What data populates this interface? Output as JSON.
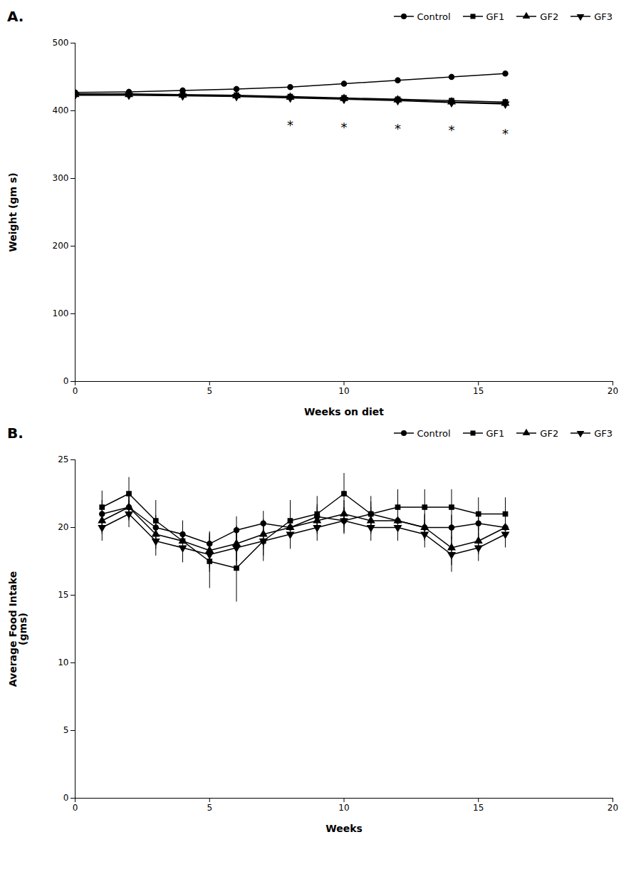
{
  "chart_data": [
    {
      "type": "line",
      "title": "A.",
      "x_label": "Weeks on diet",
      "y_label": "Weight (gm s)",
      "xlim": [
        0,
        20
      ],
      "ylim": [
        0,
        500
      ],
      "xticks": [
        0,
        5,
        10,
        15,
        20
      ],
      "yticks": [
        0,
        100,
        200,
        300,
        400,
        500
      ],
      "grid": false,
      "legend": "upper right",
      "x": [
        0,
        2,
        4,
        6,
        8,
        10,
        12,
        14,
        16
      ],
      "series": [
        {
          "name": "Control",
          "color": "#000000",
          "marker": "circle",
          "values": [
            427,
            428,
            430,
            432,
            435,
            440,
            445,
            450,
            455
          ],
          "yerr": [
            4,
            4,
            4,
            4,
            4,
            4,
            4,
            4,
            4
          ]
        },
        {
          "name": "GF1",
          "color": "#000000",
          "marker": "square",
          "values": [
            425,
            425,
            424,
            423,
            421,
            419,
            417,
            415,
            413
          ],
          "yerr": [
            4,
            4,
            4,
            4,
            4,
            4,
            4,
            4,
            4
          ]
        },
        {
          "name": "GF2",
          "color": "#000000",
          "marker": "triangle-up",
          "values": [
            424,
            424,
            423,
            422,
            420,
            418,
            416,
            413,
            411
          ],
          "yerr": [
            4,
            4,
            4,
            4,
            4,
            4,
            4,
            4,
            4
          ]
        },
        {
          "name": "GF3",
          "color": "#000000",
          "marker": "triangle-down",
          "values": [
            423,
            423,
            422,
            421,
            419,
            417,
            415,
            412,
            410
          ],
          "yerr": [
            4,
            4,
            4,
            4,
            4,
            4,
            4,
            4,
            4
          ]
        }
      ],
      "annotations": [
        {
          "x": 8,
          "y": 378,
          "text": "*"
        },
        {
          "x": 10,
          "y": 375,
          "text": "*"
        },
        {
          "x": 12,
          "y": 373,
          "text": "*"
        },
        {
          "x": 14,
          "y": 371,
          "text": "*"
        },
        {
          "x": 16,
          "y": 366,
          "text": "*"
        }
      ]
    },
    {
      "type": "line",
      "title": "B.",
      "x_label": "Weeks",
      "y_label": "Average Food Intake\n(gms)",
      "xlim": [
        0,
        20
      ],
      "ylim": [
        0,
        25
      ],
      "xticks": [
        0,
        5,
        10,
        15,
        20
      ],
      "yticks": [
        0,
        5,
        10,
        15,
        20,
        25
      ],
      "grid": false,
      "legend": "center right",
      "x": [
        1,
        2,
        3,
        4,
        5,
        6,
        7,
        8,
        9,
        10,
        11,
        12,
        13,
        14,
        15,
        16
      ],
      "series": [
        {
          "name": "Control",
          "color": "#000000",
          "marker": "circle",
          "values": [
            21.0,
            21.5,
            20.0,
            19.5,
            18.8,
            19.8,
            20.3,
            20.0,
            20.8,
            20.5,
            21.0,
            20.5,
            20.0,
            20.0,
            20.3,
            20.0
          ],
          "yerr": [
            1.0,
            0.8,
            0.9,
            0.9,
            0.9,
            1.0,
            0.9,
            0.9,
            0.9,
            0.9,
            0.9,
            0.9,
            0.9,
            0.9,
            0.9,
            0.9
          ]
        },
        {
          "name": "GF1",
          "color": "#000000",
          "marker": "square",
          "values": [
            21.5,
            22.5,
            20.5,
            19.0,
            17.5,
            17.0,
            19.0,
            20.5,
            21.0,
            22.5,
            21.0,
            21.5,
            21.5,
            21.5,
            21.0,
            21.0
          ],
          "yerr": [
            1.2,
            1.2,
            1.5,
            1.5,
            2.0,
            2.5,
            1.5,
            1.5,
            1.3,
            1.5,
            1.3,
            1.3,
            1.3,
            1.3,
            1.2,
            1.2
          ]
        },
        {
          "name": "GF2",
          "color": "#000000",
          "marker": "triangle-up",
          "values": [
            20.5,
            21.5,
            19.5,
            19.0,
            18.3,
            18.8,
            19.5,
            20.0,
            20.5,
            21.0,
            20.5,
            20.5,
            20.0,
            18.5,
            19.0,
            20.0
          ],
          "yerr": [
            1.0,
            1.0,
            1.1,
            1.1,
            1.3,
            1.3,
            1.1,
            1.1,
            1.0,
            1.0,
            1.0,
            1.0,
            1.0,
            1.3,
            1.0,
            1.0
          ]
        },
        {
          "name": "GF3",
          "color": "#000000",
          "marker": "triangle-down",
          "values": [
            20.0,
            21.0,
            19.0,
            18.5,
            18.0,
            18.5,
            19.0,
            19.5,
            20.0,
            20.5,
            20.0,
            20.0,
            19.5,
            18.0,
            18.5,
            19.5
          ],
          "yerr": [
            1.0,
            1.0,
            1.1,
            1.1,
            1.3,
            1.3,
            1.1,
            1.1,
            1.0,
            1.0,
            1.0,
            1.0,
            1.0,
            1.3,
            1.0,
            1.0
          ]
        }
      ]
    }
  ]
}
